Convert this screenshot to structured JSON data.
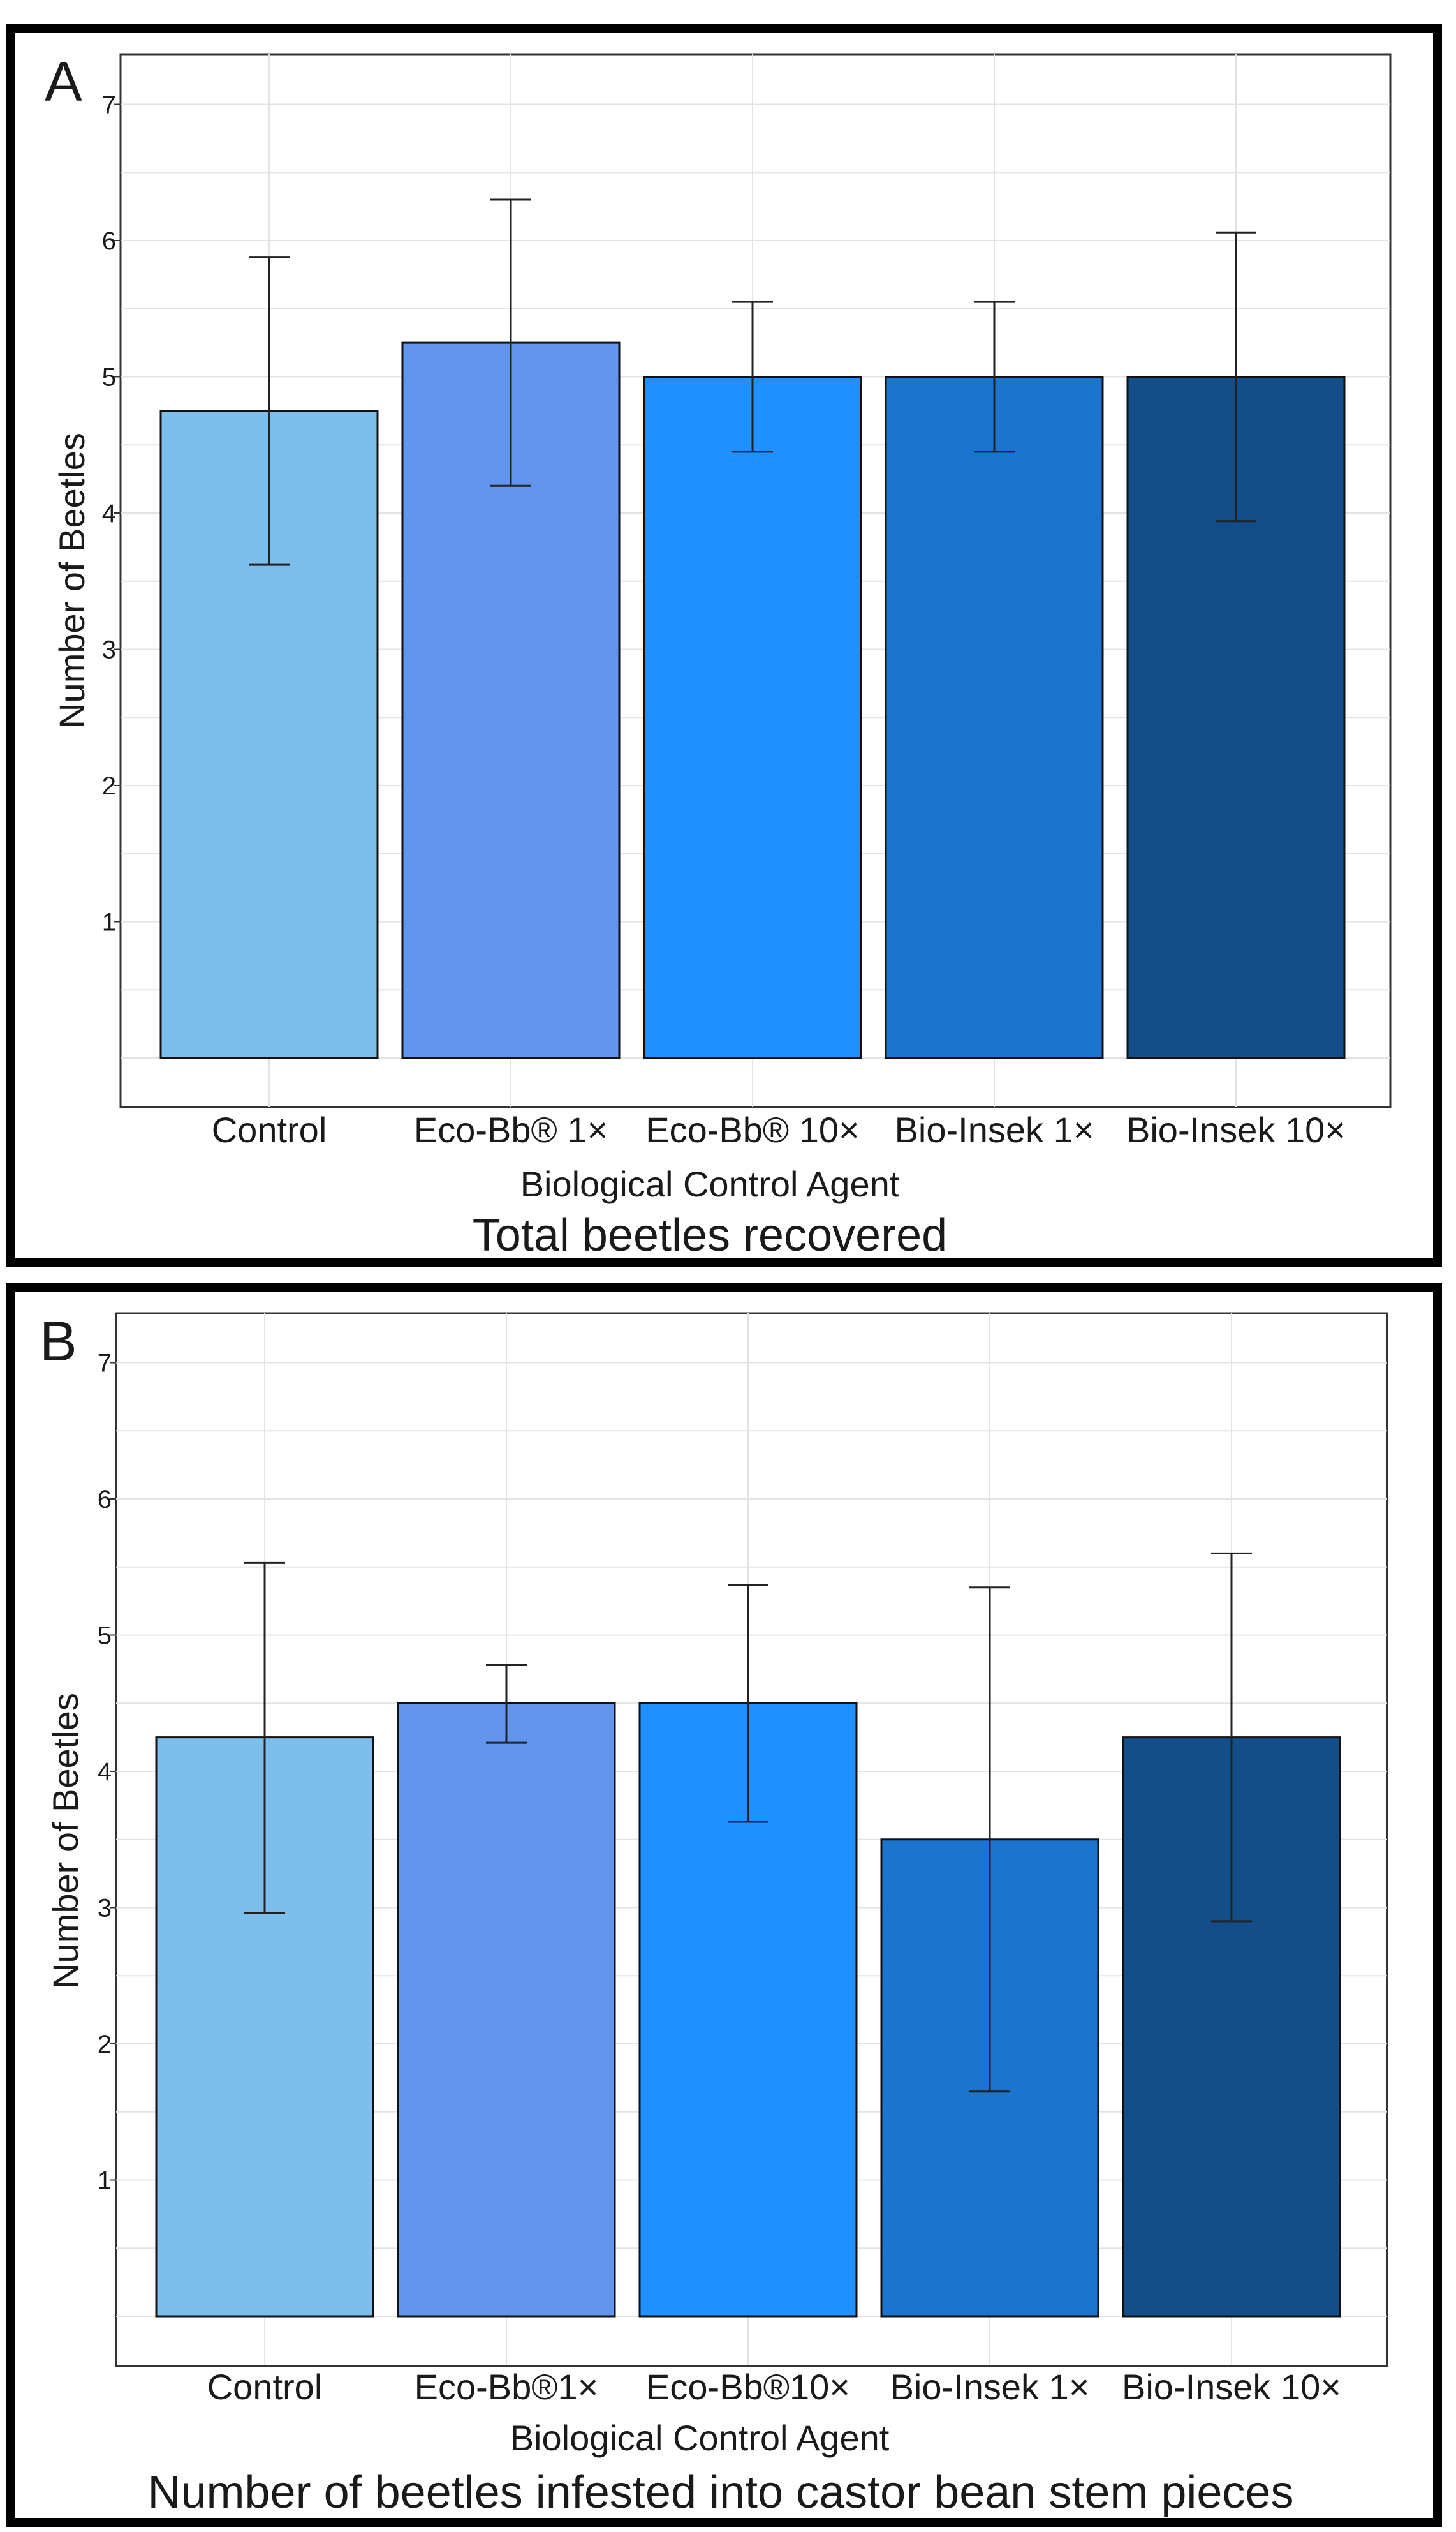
{
  "chart_data": [
    {
      "type": "bar",
      "panel_label": "A",
      "caption": "Total beetles recovered",
      "xlabel": "Biological Control Agent",
      "ylabel": "Number of Beetles",
      "ylim": [
        0,
        7.3
      ],
      "yticks": [
        1,
        2,
        3,
        4,
        5,
        6,
        7
      ],
      "grid": true,
      "categories": [
        "Control",
        "Eco-Bb® 1×",
        "Eco-Bb® 10×",
        "Bio-Insek 1×",
        "Bio-Insek 10×"
      ],
      "values": [
        4.75,
        5.25,
        5.0,
        5.0,
        5.0
      ],
      "error_low": [
        3.62,
        4.2,
        4.45,
        4.45,
        3.94
      ],
      "error_high": [
        5.88,
        6.3,
        5.55,
        5.55,
        6.06
      ],
      "colors": [
        "#7dbfec",
        "#6495ed",
        "#1e90ff",
        "#1b75ce",
        "#134e8a"
      ]
    },
    {
      "type": "bar",
      "panel_label": "B",
      "caption": "Number of beetles infested into castor bean stem pieces",
      "xlabel": "Biological Control Agent",
      "ylabel": "Number of Beetles",
      "ylim": [
        0,
        7.3
      ],
      "yticks": [
        1,
        2,
        3,
        4,
        5,
        6,
        7
      ],
      "grid": true,
      "categories": [
        "Control",
        "Eco-Bb®1×",
        "Eco-Bb®10×",
        "Bio-Insek 1×",
        "Bio-Insek 10×"
      ],
      "values": [
        4.25,
        4.5,
        4.5,
        3.5,
        4.25
      ],
      "error_low": [
        2.96,
        4.21,
        3.63,
        1.65,
        2.9
      ],
      "error_high": [
        5.53,
        4.78,
        5.37,
        5.35,
        5.6
      ],
      "colors": [
        "#7dbfec",
        "#6495ed",
        "#1e90ff",
        "#1b75ce",
        "#134e8a"
      ]
    }
  ]
}
